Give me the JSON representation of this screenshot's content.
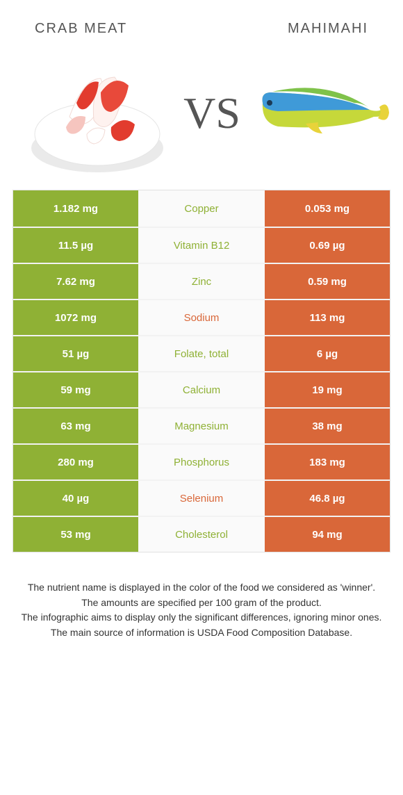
{
  "colors": {
    "winner_left": "#8fb135",
    "winner_right": "#d96739",
    "mid_bg": "#fafafa",
    "border": "#f2f2f2",
    "text_dark": "#333333"
  },
  "titles": {
    "left": "CRAB MEAT",
    "right": "MAHIMAHI"
  },
  "vs_label": "VS",
  "nutrients": [
    {
      "name": "Copper",
      "left": "1.182 mg",
      "right": "0.053 mg",
      "winner": "left"
    },
    {
      "name": "Vitamin B12",
      "left": "11.5 µg",
      "right": "0.69 µg",
      "winner": "left"
    },
    {
      "name": "Zinc",
      "left": "7.62 mg",
      "right": "0.59 mg",
      "winner": "left"
    },
    {
      "name": "Sodium",
      "left": "1072 mg",
      "right": "113 mg",
      "winner": "right"
    },
    {
      "name": "Folate, total",
      "left": "51 µg",
      "right": "6 µg",
      "winner": "left"
    },
    {
      "name": "Calcium",
      "left": "59 mg",
      "right": "19 mg",
      "winner": "left"
    },
    {
      "name": "Magnesium",
      "left": "63 mg",
      "right": "38 mg",
      "winner": "left"
    },
    {
      "name": "Phosphorus",
      "left": "280 mg",
      "right": "183 mg",
      "winner": "left"
    },
    {
      "name": "Selenium",
      "left": "40 µg",
      "right": "46.8 µg",
      "winner": "right"
    },
    {
      "name": "Cholesterol",
      "left": "53 mg",
      "right": "94 mg",
      "winner": "left"
    }
  ],
  "footer_lines": [
    "The nutrient name is displayed in the color of the food we considered as 'winner'.",
    "The amounts are specified per 100 gram of the product.",
    "The infographic aims to display only the significant differences, ignoring minor ones.",
    "The main source of information is USDA Food Composition Database."
  ],
  "crab_colors": {
    "white": "#ffffff",
    "red": "#e23c2e",
    "pink": "#f6c5bf",
    "shadow": "#dedede"
  },
  "fish_colors": {
    "body_top": "#3f9ad8",
    "body_bottom": "#c6d83a",
    "fin": "#7fc24a",
    "tail": "#e8d33a",
    "eye": "#1b3a57"
  }
}
